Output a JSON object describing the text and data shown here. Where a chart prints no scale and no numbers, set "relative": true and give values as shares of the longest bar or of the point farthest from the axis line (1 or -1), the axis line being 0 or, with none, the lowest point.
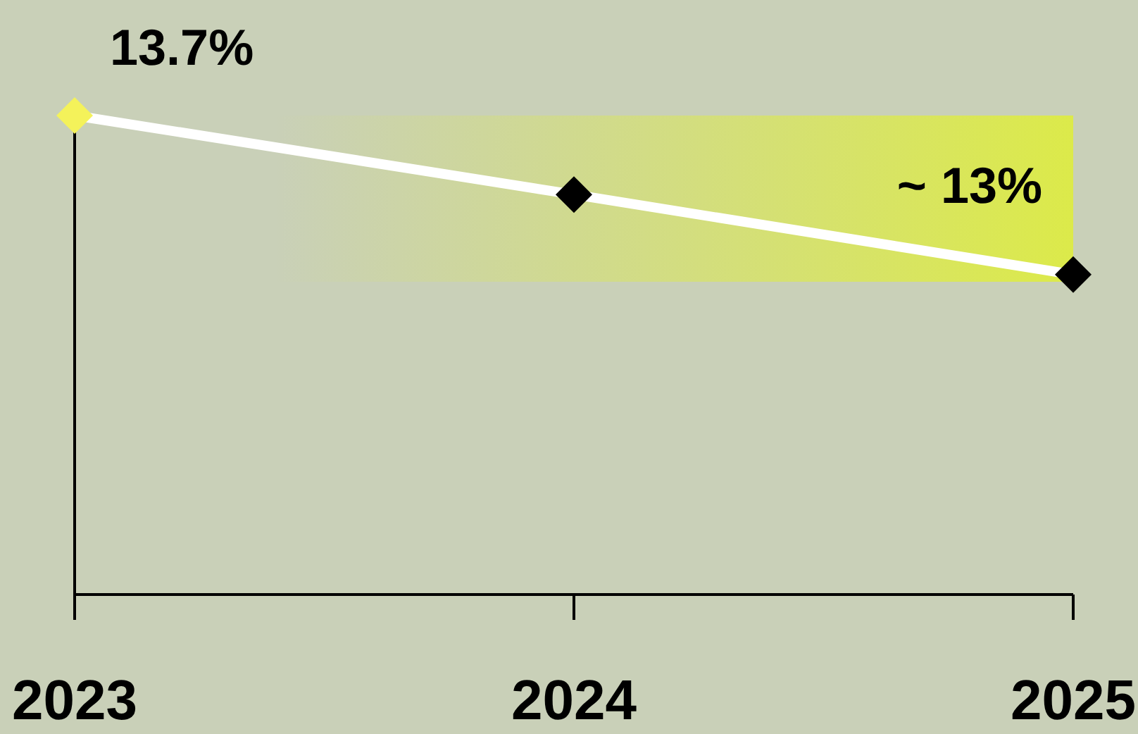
{
  "chart_data": {
    "type": "line",
    "relative": true,
    "categories": [
      "2023",
      "2024",
      "2025"
    ],
    "series": [
      {
        "color": "#ffffff",
        "colors": [
          "#f4f25a",
          "#000000",
          "#000000"
        ],
        "values": [
          1,
          0.835,
          0.668
        ]
      }
    ],
    "annotations": [
      {
        "text": "13.7%",
        "x": "2023",
        "y": 1
      }
    ],
    "marker": "diamond",
    "line_style": "solid",
    "grid": false,
    "legend": false,
    "bands": [
      {
        "axis": "y",
        "from": 0.653,
        "to": 1,
        "label": "~ 13%",
        "color": "#dcea4a"
      }
    ]
  }
}
